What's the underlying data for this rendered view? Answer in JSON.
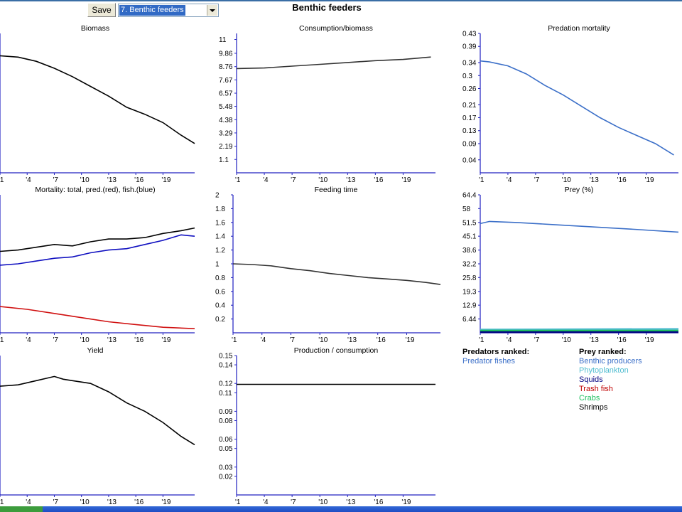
{
  "toolbar": {
    "save_label": "Save",
    "group_select_value": "7. Benthic feeders"
  },
  "page_title": "Benthic feeders",
  "x_ticks": [
    "'1",
    "'4",
    "'7",
    "'10",
    "'13",
    "'16",
    "'19"
  ],
  "legend": {
    "predators_heading": "Predators ranked:",
    "predators": [
      {
        "name": "Predator fishes",
        "color": "#3b6fc8"
      }
    ],
    "prey_heading": "Prey ranked:",
    "prey": [
      {
        "name": "Benthic producers",
        "color": "#3b6fc8"
      },
      {
        "name": "Phytoplankton",
        "color": "#4fbcd0"
      },
      {
        "name": "Squids",
        "color": "#000080"
      },
      {
        "name": "Trash fish",
        "color": "#c00000"
      },
      {
        "name": "Crabs",
        "color": "#20c060"
      },
      {
        "name": "Shrimps",
        "color": "#000000"
      }
    ]
  },
  "chart_data": [
    {
      "id": "biomass",
      "type": "line",
      "title": "Biomass",
      "ylim": [
        0,
        1
      ],
      "y_ticks": [],
      "series": [
        {
          "color": "#000000",
          "x": [
            0,
            2,
            4,
            6,
            8,
            10,
            12,
            14,
            16,
            18,
            20,
            21.5
          ],
          "y": [
            0.84,
            0.83,
            0.8,
            0.75,
            0.69,
            0.62,
            0.55,
            0.47,
            0.42,
            0.36,
            0.27,
            0.21
          ]
        }
      ]
    },
    {
      "id": "consumption-biomass",
      "type": "line",
      "title": "Consumption/biomass",
      "ylim": [
        0,
        11.5
      ],
      "y_ticks": [
        "11",
        "9.86",
        "8.76",
        "7.67",
        "6.57",
        "5.48",
        "4.38",
        "3.29",
        "2.19",
        "1.1"
      ],
      "series": [
        {
          "color": "#333333",
          "x": [
            0,
            3,
            6,
            9,
            12,
            15,
            18,
            21
          ],
          "y": [
            8.6,
            8.65,
            8.8,
            8.95,
            9.1,
            9.25,
            9.35,
            9.55
          ]
        }
      ]
    },
    {
      "id": "predation-mortality",
      "type": "line",
      "title": "Predation mortality",
      "ylim": [
        0,
        0.43
      ],
      "y_ticks": [
        "0.43",
        "0.39",
        "0.34",
        "0.3",
        "0.26",
        "0.21",
        "0.17",
        "0.13",
        "0.09",
        "0.04"
      ],
      "series": [
        {
          "color": "#3b6fc8",
          "x": [
            0,
            1,
            3,
            5,
            7,
            9,
            11,
            13,
            15,
            17,
            19,
            21
          ],
          "y": [
            0.345,
            0.342,
            0.33,
            0.305,
            0.27,
            0.24,
            0.205,
            0.17,
            0.14,
            0.115,
            0.09,
            0.055
          ]
        }
      ]
    },
    {
      "id": "mortality",
      "type": "line",
      "title": "Mortality: total, pred.(red), fish.(blue)",
      "ylim": [
        0,
        1
      ],
      "y_ticks": [],
      "series": [
        {
          "color": "#000000",
          "x": [
            0,
            2,
            4,
            6,
            8,
            10,
            12,
            14,
            16,
            18,
            20,
            21.5
          ],
          "y": [
            0.59,
            0.6,
            0.62,
            0.64,
            0.63,
            0.66,
            0.68,
            0.68,
            0.69,
            0.72,
            0.74,
            0.76
          ]
        },
        {
          "color": "#1010c0",
          "x": [
            0,
            2,
            4,
            6,
            8,
            10,
            12,
            14,
            16,
            18,
            20,
            21.5
          ],
          "y": [
            0.49,
            0.5,
            0.52,
            0.54,
            0.55,
            0.58,
            0.6,
            0.61,
            0.64,
            0.67,
            0.71,
            0.7
          ]
        },
        {
          "color": "#d01010",
          "x": [
            0,
            3,
            6,
            9,
            12,
            15,
            18,
            21.5
          ],
          "y": [
            0.19,
            0.17,
            0.14,
            0.11,
            0.08,
            0.06,
            0.04,
            0.03
          ]
        }
      ]
    },
    {
      "id": "feeding-time",
      "type": "line",
      "title": "Feeding time",
      "ylim": [
        0,
        2
      ],
      "y_ticks": [
        "2",
        "1.8",
        "1.6",
        "1.4",
        "1.2",
        "1",
        "0.8",
        "0.6",
        "0.4",
        "0.2"
      ],
      "series": [
        {
          "color": "#333333",
          "x": [
            0,
            2,
            4,
            6,
            8,
            10,
            12,
            14,
            16,
            18,
            20,
            21.5
          ],
          "y": [
            1.0,
            0.99,
            0.97,
            0.93,
            0.9,
            0.86,
            0.83,
            0.8,
            0.78,
            0.76,
            0.73,
            0.7
          ]
        }
      ]
    },
    {
      "id": "prey-percent",
      "type": "line",
      "title": "Prey (%)",
      "ylim": [
        0,
        64.4
      ],
      "y_ticks": [
        "64.4",
        "58",
        "51.5",
        "45.1",
        "38.6",
        "32.2",
        "25.8",
        "19.3",
        "12.9",
        "6.44"
      ],
      "series": [
        {
          "color": "#3b6fc8",
          "x": [
            0,
            1,
            4,
            8,
            12,
            16,
            21.5
          ],
          "y": [
            51,
            52,
            51.5,
            50.5,
            49.5,
            48.5,
            47
          ]
        },
        {
          "color": "#4fbcd0",
          "x": [
            0,
            21.5
          ],
          "y": [
            1.5,
            1.8
          ]
        },
        {
          "color": "#20c060",
          "x": [
            0,
            21.5
          ],
          "y": [
            1.0,
            1.0
          ]
        },
        {
          "color": "#000080",
          "x": [
            0,
            21.5
          ],
          "y": [
            0.3,
            0.3
          ]
        }
      ]
    },
    {
      "id": "yield",
      "type": "line",
      "title": "Yield",
      "ylim": [
        0,
        1
      ],
      "y_ticks": [],
      "series": [
        {
          "color": "#000000",
          "x": [
            0,
            2,
            4,
            6,
            7,
            8,
            10,
            12,
            14,
            16,
            18,
            20,
            21.5
          ],
          "y": [
            0.78,
            0.79,
            0.82,
            0.85,
            0.83,
            0.82,
            0.8,
            0.74,
            0.66,
            0.6,
            0.52,
            0.42,
            0.36
          ]
        }
      ]
    },
    {
      "id": "production-consumption",
      "type": "line",
      "title": "Production / consumption",
      "ylim": [
        0,
        0.15
      ],
      "y_ticks": [
        "0.15",
        "0.14",
        "0.12",
        "0.11",
        "0.09",
        "0.08",
        "0.06",
        "0.05",
        "0.03",
        "0.02"
      ],
      "series": [
        {
          "color": "#000000",
          "x": [
            0,
            21.5
          ],
          "y": [
            0.119,
            0.119
          ]
        }
      ]
    }
  ]
}
